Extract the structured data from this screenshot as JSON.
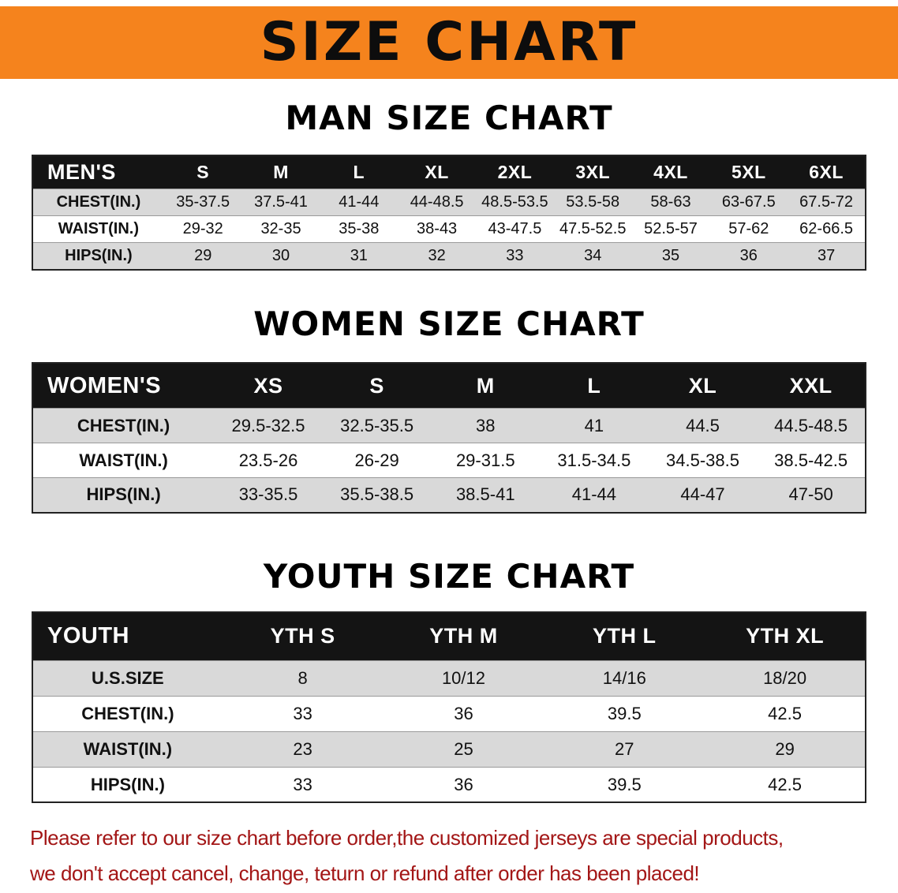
{
  "banner": {
    "title": "SIZE CHART",
    "bg_color": "#f5831d"
  },
  "colors": {
    "header_bg": "#141414",
    "row_alt_bg": "#d9d9d9",
    "disclaimer_red": "#a31616"
  },
  "sections": [
    {
      "heading": "MAN SIZE CHART",
      "table": {
        "header": [
          "MEN'S",
          "S",
          "M",
          "L",
          "XL",
          "2XL",
          "3XL",
          "4XL",
          "5XL",
          "6XL"
        ],
        "rows": [
          {
            "label": "CHEST(IN.)",
            "values": [
              "35-37.5",
              "37.5-41",
              "41-44",
              "44-48.5",
              "48.5-53.5",
              "53.5-58",
              "58-63",
              "63-67.5",
              "67.5-72"
            ]
          },
          {
            "label": "WAIST(IN.)",
            "values": [
              "29-32",
              "32-35",
              "35-38",
              "38-43",
              "43-47.5",
              "47.5-52.5",
              "52.5-57",
              "57-62",
              "62-66.5"
            ]
          },
          {
            "label": "HIPS(IN.)",
            "values": [
              "29",
              "30",
              "31",
              "32",
              "33",
              "34",
              "35",
              "36",
              "37"
            ]
          }
        ]
      }
    },
    {
      "heading": "WOMEN SIZE CHART",
      "table": {
        "header": [
          "WOMEN'S",
          "XS",
          "S",
          "M",
          "L",
          "XL",
          "XXL"
        ],
        "rows": [
          {
            "label": "CHEST(IN.)",
            "values": [
              "29.5-32.5",
              "32.5-35.5",
              "38",
              "41",
              "44.5",
              "44.5-48.5"
            ]
          },
          {
            "label": "WAIST(IN.)",
            "values": [
              "23.5-26",
              "26-29",
              "29-31.5",
              "31.5-34.5",
              "34.5-38.5",
              "38.5-42.5"
            ]
          },
          {
            "label": "HIPS(IN.)",
            "values": [
              "33-35.5",
              "35.5-38.5",
              "38.5-41",
              "41-44",
              "44-47",
              "47-50"
            ]
          }
        ]
      }
    },
    {
      "heading": "YOUTH SIZE CHART",
      "table": {
        "header": [
          "YOUTH",
          "YTH S",
          "YTH M",
          "YTH L",
          "YTH XL"
        ],
        "rows": [
          {
            "label": "U.S.SIZE",
            "values": [
              "8",
              "10/12",
              "14/16",
              "18/20"
            ]
          },
          {
            "label": "CHEST(IN.)",
            "values": [
              "33",
              "36",
              "39.5",
              "42.5"
            ]
          },
          {
            "label": "WAIST(IN.)",
            "values": [
              "23",
              "25",
              "27",
              "29"
            ]
          },
          {
            "label": "HIPS(IN.)",
            "values": [
              "33",
              "36",
              "39.5",
              "42.5"
            ]
          }
        ]
      }
    }
  ],
  "disclaimer": {
    "line1": "Please refer to our size chart before order,the customized jerseys are special products,",
    "line2": "we don't accept cancel, change, teturn or refund after order has been placed!"
  }
}
